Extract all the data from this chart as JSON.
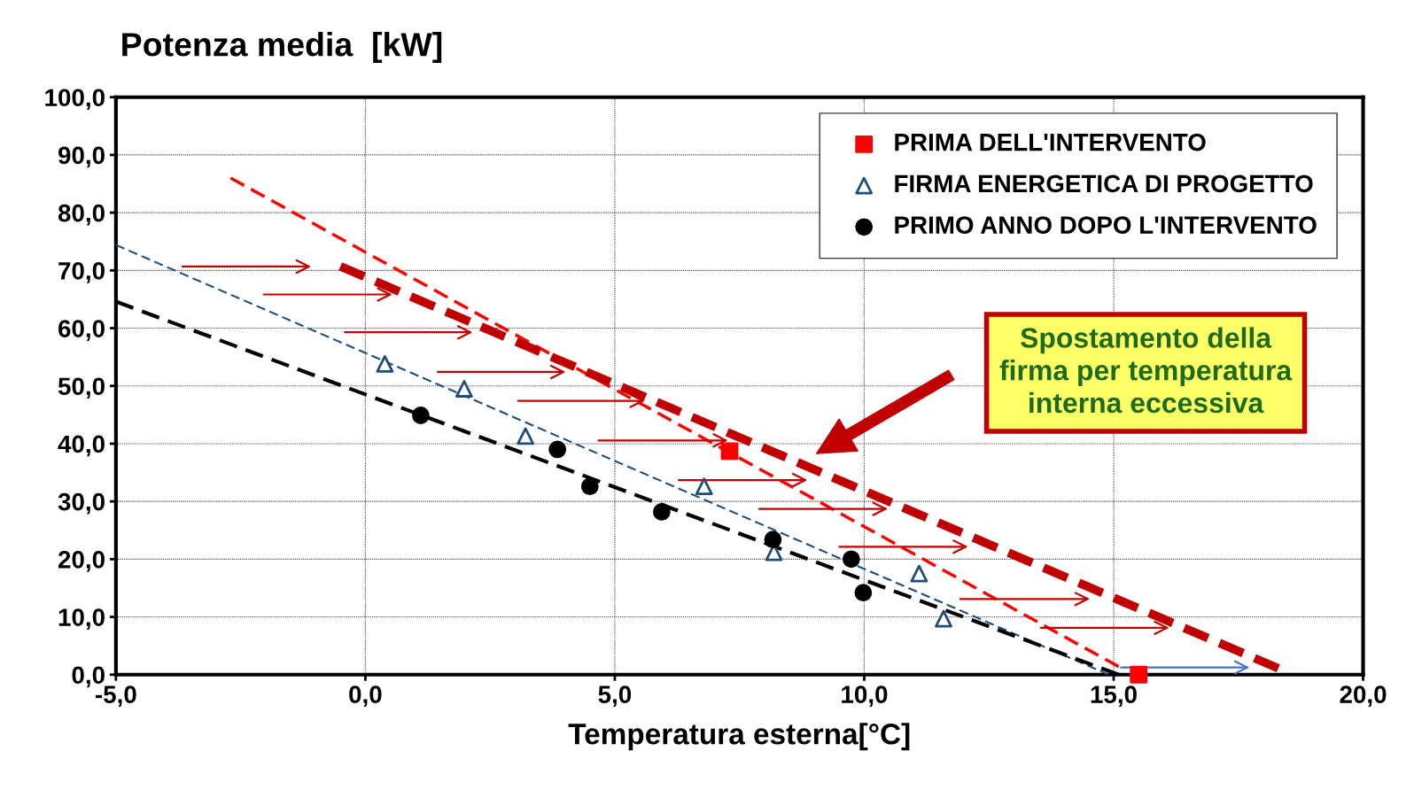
{
  "chart_data": {
    "type": "scatter",
    "title": "Potenza media  [kW]",
    "xlabel": "Temperatura esterna[°C]",
    "annotations": [
      "Spostamento della\nfirma per temperatura\ninterna eccessiva"
    ],
    "xlim": [
      -5,
      20
    ],
    "ylim": [
      0,
      100
    ],
    "xticks": [
      {
        "value": -5,
        "label": "-5,0"
      },
      {
        "value": 0,
        "label": "0,0"
      },
      {
        "value": 5,
        "label": "5,0"
      },
      {
        "value": 10,
        "label": "10,0"
      },
      {
        "value": 15,
        "label": "15,0"
      },
      {
        "value": 20,
        "label": "20,0"
      }
    ],
    "yticks": [
      {
        "value": 0,
        "label": "0,0"
      },
      {
        "value": 10,
        "label": "10,0"
      },
      {
        "value": 20,
        "label": "20,0"
      },
      {
        "value": 30,
        "label": "30,0"
      },
      {
        "value": 40,
        "label": "40,0"
      },
      {
        "value": 50,
        "label": "50,0"
      },
      {
        "value": 60,
        "label": "60,0"
      },
      {
        "value": 70,
        "label": "70,0"
      },
      {
        "value": 80,
        "label": "80,0"
      },
      {
        "value": 90,
        "label": "90,0"
      },
      {
        "value": 100,
        "label": "100,0"
      }
    ],
    "grid": true,
    "legend": "top right",
    "series": [
      {
        "name": "PRIMA DELL'INTERVENTO",
        "marker": "square",
        "color": "#ff0000",
        "x": [
          7.3,
          15.5
        ],
        "values": [
          38.7,
          0
        ]
      },
      {
        "name": "FIRMA ENERGETICA DI PROGETTO",
        "marker": "triangle",
        "color": "#1f4e79",
        "x": [
          0.39,
          1.98,
          3.21,
          6.79,
          8.19,
          11.1,
          11.59
        ],
        "values": [
          53.8,
          49.5,
          41.3,
          32.6,
          21.2,
          17.5,
          9.7
        ]
      },
      {
        "name": "PRIMO ANNO DOPO L'INTERVENTO",
        "marker": "circle",
        "color": "#000000",
        "x": [
          1.11,
          3.85,
          4.5,
          5.94,
          8.17,
          9.74,
          9.98
        ],
        "values": [
          44.9,
          39.0,
          32.6,
          28.2,
          23.4,
          20.0,
          14.2
        ]
      },
      {
        "type": "line",
        "line_style": "dashed",
        "color": "#ff0000",
        "x": [
          -2.7,
          15.1
        ],
        "values": [
          86.0,
          1.4
        ]
      },
      {
        "type": "line",
        "line_style": "dashed",
        "color": "#1f4e79",
        "x": [
          -5,
          14.9
        ],
        "values": [
          74.4,
          0
        ]
      },
      {
        "type": "line",
        "line_style": "dashed",
        "color": "#000000",
        "x": [
          -5,
          15.1
        ],
        "values": [
          64.6,
          0
        ]
      },
      {
        "type": "line",
        "line_style": "dashed",
        "color": "#c00000",
        "x": [
          -0.5,
          18.3
        ],
        "values": [
          70.7,
          1.1
        ]
      }
    ]
  }
}
